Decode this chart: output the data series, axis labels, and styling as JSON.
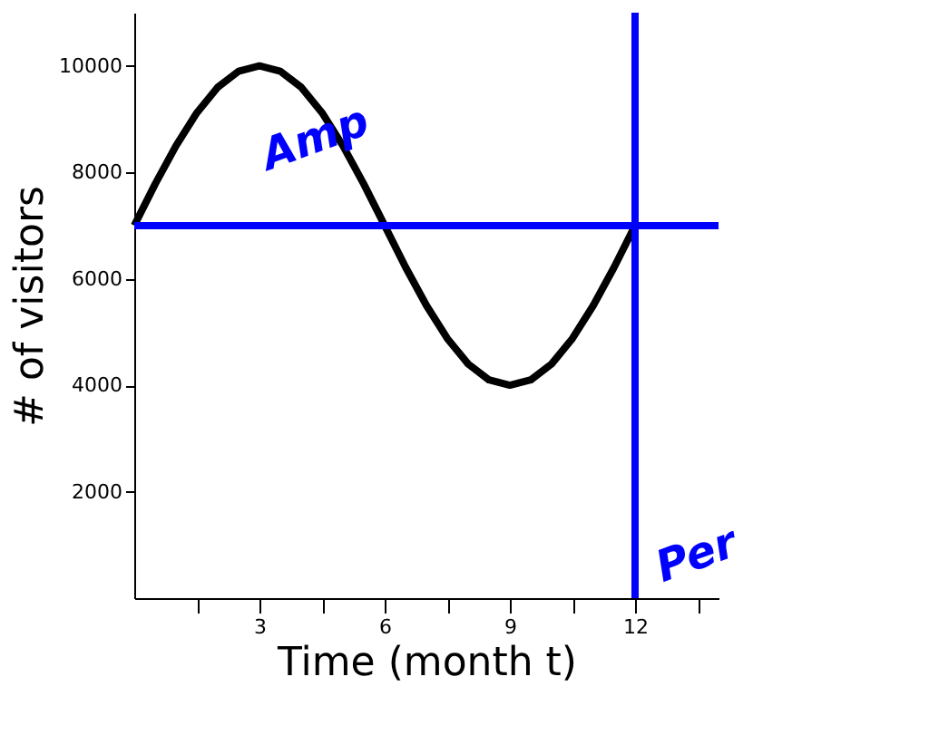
{
  "chart_data": {
    "type": "line",
    "xlabel": "Time (month t)",
    "ylabel": "# of visitors",
    "x": [
      0,
      0.5,
      1,
      1.5,
      2,
      2.5,
      3,
      3.5,
      4,
      4.5,
      5,
      5.5,
      6,
      6.5,
      7,
      7.5,
      8,
      8.5,
      9,
      9.5,
      10,
      10.5,
      11,
      11.5,
      12
    ],
    "series": [
      {
        "color": "#000000",
        "values": [
          7000,
          7780,
          8500,
          9120,
          9600,
          9900,
          10000,
          9900,
          9600,
          9120,
          8500,
          7780,
          7000,
          6220,
          5500,
          4880,
          4400,
          4100,
          4000,
          4100,
          4400,
          4880,
          5500,
          6220,
          7000
        ]
      }
    ],
    "xlim": [
      0,
      14
    ],
    "ylim": [
      0,
      11000
    ],
    "xticks": [
      {
        "value": 1.5,
        "label": null
      },
      3,
      {
        "value": 4.5,
        "label": null
      },
      6,
      {
        "value": 7.5,
        "label": null
      },
      9,
      {
        "value": 10.5,
        "label": null
      },
      12,
      {
        "value": 13.5,
        "label": null
      }
    ],
    "yticks": [
      2000,
      4000,
      6000,
      8000,
      10000
    ],
    "grid": false,
    "marker": "none",
    "line_style": "solid",
    "ref_lines": [
      {
        "axis": "y",
        "value": 7000,
        "color": "#0000ff"
      },
      {
        "axis": "x",
        "value": 12,
        "color": "#0000ff"
      }
    ],
    "annotations": [
      "Amp",
      "Per"
    ]
  }
}
